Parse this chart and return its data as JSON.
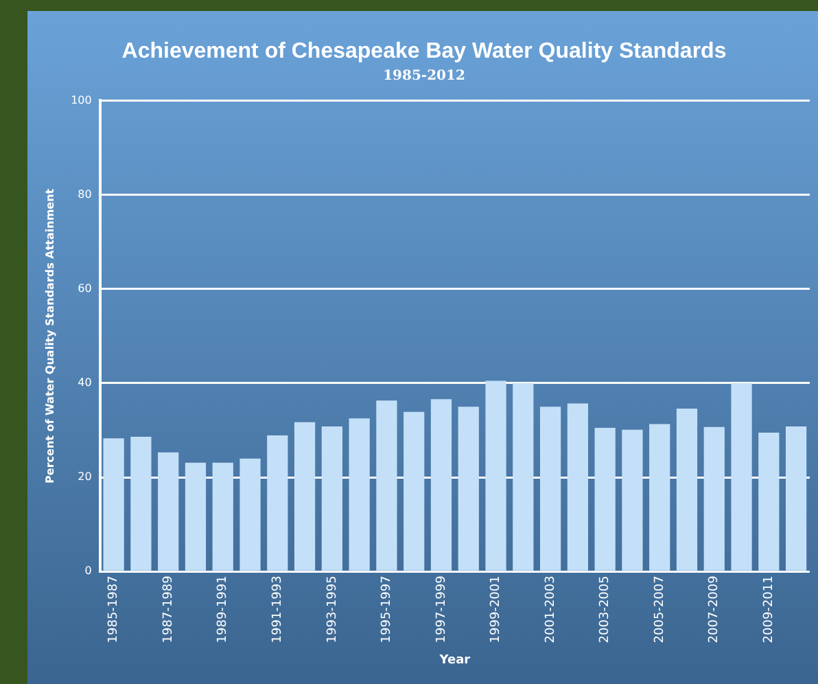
{
  "chart_data": {
    "type": "bar",
    "title": "Achievement of Chesapeake Bay Water Quality Standards",
    "subtitle": "1985-2012",
    "xlabel": "Year",
    "ylabel": "Percent of Water Quality Standards Attainment",
    "categories": [
      "1985-1987",
      null,
      "1987-1989",
      null,
      "1989-1991",
      null,
      "1991-1993",
      null,
      "1993-1995",
      null,
      "1995-1997",
      null,
      "1997-1999",
      null,
      "1999-2001",
      null,
      "2001-2003",
      null,
      "2003-2005",
      null,
      "2005-2007",
      null,
      "2007-2009",
      null,
      "2009-2011",
      null
    ],
    "values": [
      28.3,
      28.6,
      25.3,
      23.1,
      23.1,
      24.0,
      28.9,
      31.7,
      30.8,
      32.5,
      36.3,
      33.9,
      36.6,
      35.0,
      40.5,
      40.0,
      35.0,
      35.7,
      30.5,
      30.1,
      31.3,
      34.6,
      30.7,
      40.0,
      29.5,
      30.8
    ],
    "color": "#c4e0f8",
    "ylim": [
      0,
      100
    ],
    "yticks": [
      0,
      20,
      40,
      60,
      80,
      100
    ],
    "grid": "y",
    "legend": false
  }
}
